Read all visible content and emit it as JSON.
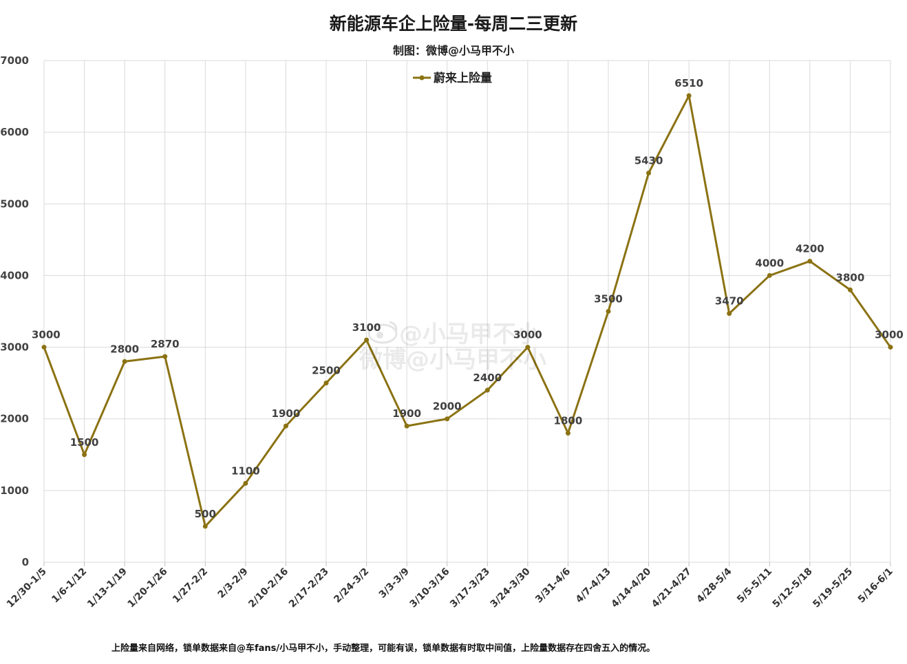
{
  "chart_data": {
    "type": "line",
    "title": "新能源车企上险量-每周二三更新",
    "subtitle": "制图：微博@小马甲不小",
    "categories": [
      "12/30-1/5",
      "1/6-1/12",
      "1/13-1/19",
      "1/20-1/26",
      "1/27-2/2",
      "2/3-2/9",
      "2/10-2/16",
      "2/17-2/23",
      "2/24-3/2",
      "3/3-3/9",
      "3/10-3/16",
      "3/17-3/23",
      "3/24-3/30",
      "3/31-4/6",
      "4/7-4/13",
      "4/14-4/20",
      "4/21-4/27",
      "4/28-5/4",
      "5/5-5/11",
      "5/12-5/18",
      "5/19-5/25",
      "5/16-6/1"
    ],
    "series": [
      {
        "name": "蔚来上险量",
        "color": "#8B7212",
        "values": [
          3000,
          1500,
          2800,
          2870,
          500,
          1100,
          1900,
          2500,
          3100,
          1900,
          2000,
          2400,
          3000,
          1800,
          3500,
          5430,
          6510,
          3470,
          4000,
          4200,
          3800,
          3000
        ]
      }
    ],
    "ylim": [
      0,
      7000
    ],
    "yticks": [
      0,
      1000,
      2000,
      3000,
      4000,
      5000,
      6000,
      7000
    ],
    "grid": true,
    "legend": "top-center",
    "xlabel": "",
    "ylabel": ""
  },
  "footnote": "上险量来自网络，锁单数据来自@车fans/小马甲不小，手动整理，可能有误，锁单数据有时取中间值，上险量数据存在四舍五入的情况。",
  "watermark": {
    "line1": "@小马甲不小",
    "line2": "微博@小马甲不小",
    "icon": "weibo-icon"
  }
}
